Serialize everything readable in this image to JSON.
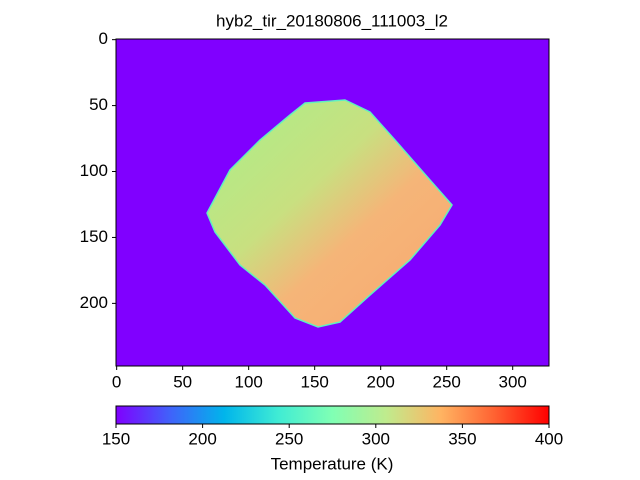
{
  "chart_data": {
    "type": "image",
    "title": "hyb2_tir_20180806_111003_l2",
    "xlim": [
      -0.5,
      327.5
    ],
    "ylim": [
      247.5,
      -0.5
    ],
    "xticks": [
      0,
      50,
      100,
      150,
      200,
      250,
      300
    ],
    "yticks": [
      0,
      50,
      100,
      150,
      200
    ],
    "background": "#8000ff",
    "colormap": "rainbow",
    "colorbar": {
      "label": "Temperature (K)",
      "lim": [
        150,
        400
      ],
      "ticks": [
        150,
        200,
        250,
        300,
        350,
        400
      ]
    }
  }
}
